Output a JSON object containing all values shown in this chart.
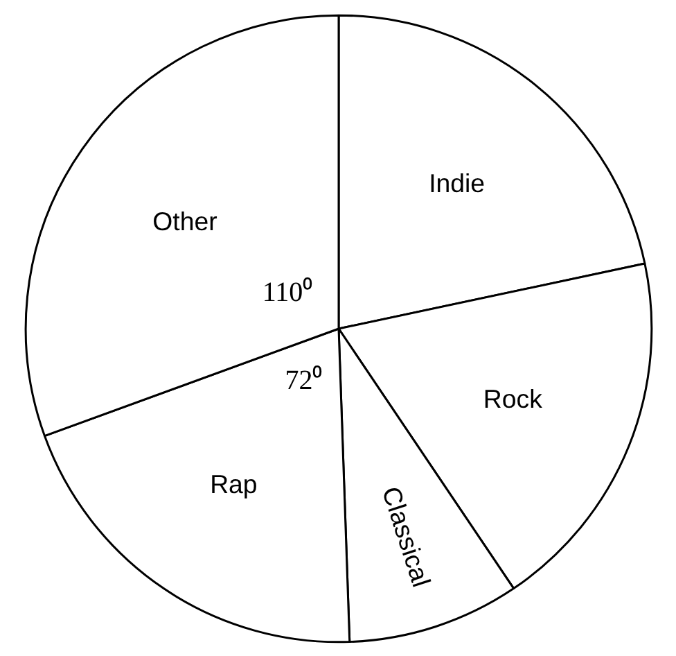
{
  "chart_data": {
    "type": "pie",
    "categories": [
      "Indie",
      "Rock",
      "Classical",
      "Rap",
      "Other"
    ],
    "values": [
      78,
      68,
      32,
      72,
      110
    ],
    "colors": [
      "#ffffff",
      "#ffffff",
      "#ffffff",
      "#ffffff",
      "#ffffff"
    ],
    "value_labels": [
      null,
      null,
      null,
      "72⁰",
      "110⁰"
    ]
  }
}
